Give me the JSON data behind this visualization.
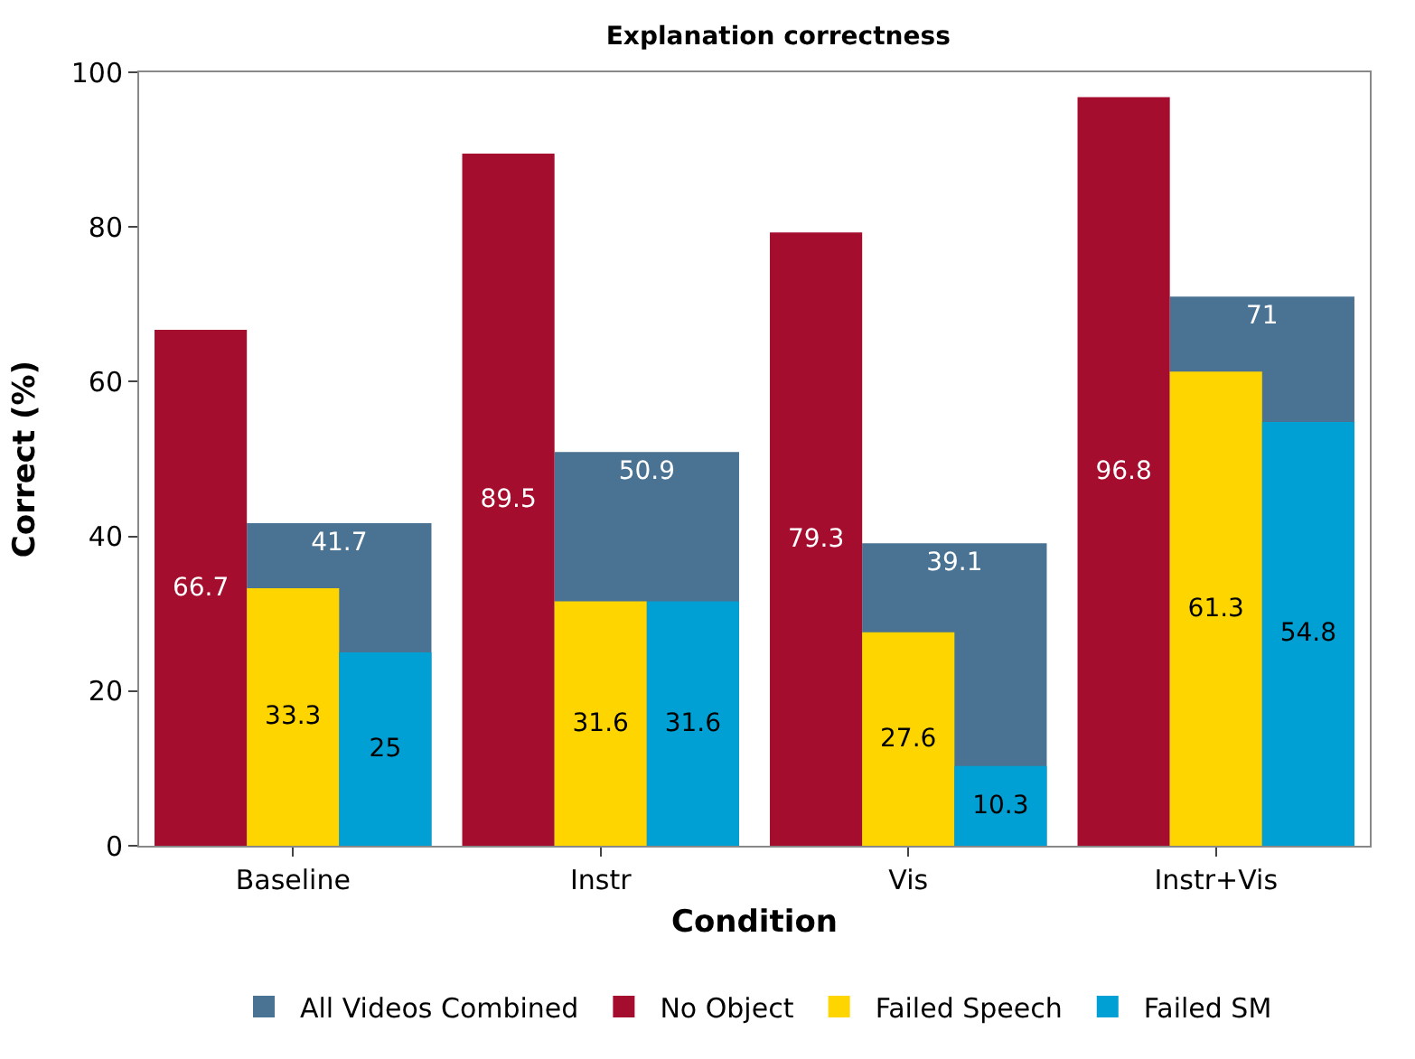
{
  "chart_data": {
    "type": "bar",
    "title": "Explanation correctness",
    "xlabel": "Condition",
    "ylabel": "Correct (%)",
    "categories": [
      "Baseline",
      "Instr",
      "Vis",
      "Instr+Vis"
    ],
    "series": [
      {
        "name": "All Videos Combined",
        "color": "#4a7393",
        "values": [
          41.7,
          50.9,
          39.1,
          71
        ]
      },
      {
        "name": "No Object",
        "color": "#a50d2e",
        "values": [
          66.7,
          89.5,
          79.3,
          96.8
        ]
      },
      {
        "name": "Failed Speech",
        "color": "#ffd500",
        "values": [
          33.3,
          31.6,
          27.6,
          61.3
        ]
      },
      {
        "name": "Failed SM",
        "color": "#009fd4",
        "values": [
          25,
          31.6,
          10.3,
          54.8
        ]
      }
    ],
    "ylim": [
      0,
      100
    ],
    "yticks": [
      0,
      20,
      40,
      60,
      80,
      100
    ],
    "legend": "bottom",
    "data_labels": true
  }
}
